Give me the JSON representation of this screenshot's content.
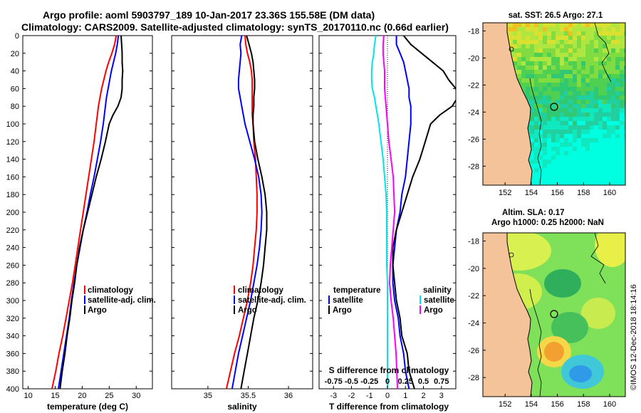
{
  "header": {
    "title_line1": "Argo profile: aoml 5903797_189 10-Jan-2017 23.36S 155.58E (DM data)",
    "title_line2": "Climatology: CARS2009. Satellite-adjusted climatology: synTS_20170110.nc (0.66d earlier)"
  },
  "colors": {
    "climatology": "#ff0000",
    "satellite": "#0000ff",
    "argo": "#000000",
    "salinity_satellite": "#00e5e5",
    "salinity_climatology": "#ff00ff",
    "land": "#f4c39a"
  },
  "depth_ticks": [
    "0",
    "20",
    "40",
    "60",
    "80",
    "100",
    "120",
    "140",
    "160",
    "180",
    "200",
    "220",
    "240",
    "260",
    "280",
    "300",
    "320",
    "340",
    "360",
    "380",
    "400"
  ],
  "chart_data": [
    {
      "type": "line",
      "name": "temperature-profile",
      "xlabel": "temperature (deg C)",
      "ylabel": "depth",
      "xlim": [
        9,
        33
      ],
      "ylim": [
        400,
        0
      ],
      "xticks": [
        "10",
        "15",
        "20",
        "25",
        "30"
      ],
      "depth": [
        0,
        10,
        20,
        30,
        40,
        50,
        60,
        70,
        80,
        90,
        100,
        120,
        140,
        160,
        180,
        200,
        220,
        240,
        260,
        280,
        300,
        320,
        340,
        360,
        380,
        400
      ],
      "series": [
        {
          "name": "climatology",
          "legend": "climatology",
          "color": "#ff0000",
          "values": [
            26.3,
            26.0,
            25.5,
            24.9,
            24.4,
            24.0,
            23.6,
            23.3,
            23.0,
            22.8,
            22.6,
            22.2,
            21.7,
            21.2,
            20.7,
            20.2,
            19.7,
            19.2,
            18.7,
            18.2,
            17.6,
            17.0,
            16.4,
            15.7,
            15.1,
            14.4
          ]
        },
        {
          "name": "satellite-adj. clim.",
          "legend": "satellite-adj. clim.",
          "color": "#0000ff",
          "values": [
            26.7,
            26.5,
            26.2,
            25.8,
            25.4,
            25.1,
            24.8,
            24.5,
            24.3,
            24.1,
            23.9,
            23.4,
            22.8,
            22.2,
            21.5,
            20.9,
            20.2,
            19.6,
            19.0,
            18.5,
            18.0,
            17.6,
            17.1,
            16.6,
            16.1,
            15.6
          ]
        },
        {
          "name": "Argo",
          "legend": "Argo",
          "color": "#000000",
          "values": [
            27.2,
            27.3,
            27.4,
            27.4,
            27.5,
            27.4,
            27.4,
            27.2,
            26.6,
            25.7,
            25.0,
            24.3,
            23.5,
            22.6,
            21.8,
            21.0,
            20.2,
            19.5,
            19.0,
            18.6,
            18.1,
            17.7,
            17.2,
            16.8,
            16.3,
            15.9
          ]
        }
      ],
      "legend": [
        "climatology",
        "satellite-adj. clim.",
        "Argo"
      ]
    },
    {
      "type": "line",
      "name": "salinity-profile",
      "xlabel": "salinity",
      "ylabel": "depth",
      "xlim": [
        34.55,
        36.3
      ],
      "ylim": [
        400,
        0
      ],
      "xticks": [
        "35",
        "35.5",
        "36"
      ],
      "depth": [
        0,
        10,
        20,
        30,
        40,
        50,
        60,
        70,
        80,
        90,
        100,
        120,
        140,
        160,
        180,
        200,
        220,
        240,
        260,
        280,
        300,
        320,
        340,
        360,
        380,
        400
      ],
      "series": [
        {
          "name": "climatology",
          "legend": "climatology",
          "color": "#ff0000",
          "values": [
            35.46,
            35.47,
            35.49,
            35.52,
            35.54,
            35.55,
            35.55,
            35.55,
            35.55,
            35.55,
            35.56,
            35.57,
            35.59,
            35.6,
            35.61,
            35.61,
            35.6,
            35.58,
            35.56,
            35.53,
            35.49,
            35.44,
            35.39,
            35.33,
            35.28,
            35.23
          ]
        },
        {
          "name": "satellite-adj. clim.",
          "legend": "satellite-adj. clim.",
          "color": "#0000ff",
          "values": [
            35.42,
            35.4,
            35.41,
            35.4,
            35.39,
            35.38,
            35.38,
            35.4,
            35.42,
            35.44,
            35.46,
            35.52,
            35.58,
            35.63,
            35.66,
            35.67,
            35.66,
            35.64,
            35.61,
            35.57,
            35.53,
            35.48,
            35.43,
            35.38,
            35.34,
            35.3
          ]
        },
        {
          "name": "Argo",
          "legend": "Argo",
          "color": "#000000",
          "values": [
            35.48,
            35.51,
            35.54,
            35.56,
            35.57,
            35.58,
            35.58,
            35.57,
            35.57,
            35.56,
            35.56,
            35.58,
            35.62,
            35.67,
            35.71,
            35.73,
            35.73,
            35.71,
            35.69,
            35.66,
            35.62,
            35.57,
            35.53,
            35.49,
            35.45,
            35.41
          ]
        }
      ],
      "legend": [
        "climatology",
        "satellite-adj. clim.",
        "Argo"
      ]
    },
    {
      "type": "line",
      "name": "difference-profile",
      "xlabel": "T difference from climatology",
      "xlabel_top": "S difference from climatology",
      "ylabel": "depth",
      "xlim": [
        -3.8,
        3.8
      ],
      "ylim": [
        400,
        0
      ],
      "xticks": [
        "-3",
        "-2",
        "-1",
        "0",
        "1",
        "2",
        "3"
      ],
      "xticks_top": [
        "-0.75",
        "-0.5",
        "-0.25",
        "0",
        "0.25",
        "0.5",
        "0.75"
      ],
      "depth": [
        0,
        10,
        20,
        30,
        40,
        50,
        60,
        70,
        80,
        90,
        100,
        120,
        140,
        160,
        180,
        200,
        220,
        240,
        260,
        280,
        300,
        320,
        340,
        360,
        380,
        400
      ],
      "series": [
        {
          "name": "temperature satellite",
          "group": "temperature",
          "legend": "satellite",
          "color": "#0000ff",
          "values": [
            0.5,
            0.5,
            0.7,
            0.9,
            1.0,
            1.1,
            1.2,
            1.2,
            1.3,
            1.3,
            1.3,
            1.2,
            1.1,
            1.0,
            0.8,
            0.7,
            0.5,
            0.4,
            0.3,
            0.3,
            0.4,
            0.6,
            0.7,
            0.9,
            1.0,
            1.2
          ]
        },
        {
          "name": "temperature Argo",
          "group": "temperature",
          "legend": "Argo",
          "color": "#000000",
          "values": [
            0.9,
            1.3,
            1.9,
            2.5,
            3.1,
            3.4,
            3.8,
            3.9,
            3.6,
            2.9,
            2.4,
            2.1,
            1.8,
            1.4,
            1.1,
            0.8,
            0.5,
            0.3,
            0.3,
            0.4,
            0.5,
            0.7,
            0.8,
            1.1,
            1.2,
            1.5
          ]
        },
        {
          "name": "salinity satellite",
          "group": "salinity",
          "legend": "satellite",
          "color": "#00e5e5",
          "values": [
            -0.16,
            -0.18,
            -0.19,
            -0.21,
            -0.22,
            -0.22,
            -0.21,
            -0.18,
            -0.16,
            -0.14,
            -0.12,
            -0.09,
            -0.06,
            -0.04,
            -0.02,
            -0.01,
            -0.01,
            -0.01,
            -0.01,
            0.0,
            0.0,
            0.0,
            0.0,
            0.0,
            0.0,
            0.0
          ]
        },
        {
          "name": "salinity Argo",
          "group": "salinity",
          "legend": "Argo",
          "color": "#ff00ff",
          "values": [
            -0.05,
            -0.06,
            -0.06,
            -0.05,
            -0.04,
            -0.04,
            -0.04,
            -0.03,
            -0.02,
            -0.01,
            0.0,
            0.02,
            0.05,
            0.08,
            0.09,
            0.1,
            0.08,
            0.06,
            0.04,
            0.03,
            0.05,
            0.08,
            0.1,
            0.12,
            0.13,
            0.14
          ]
        }
      ],
      "legend_temperature_title": "temperature",
      "legend_salinity_title": "salinity",
      "legend_temperature": [
        "satellite",
        "Argo"
      ],
      "legend_salinity": [
        "satellite",
        "Argo"
      ]
    },
    {
      "type": "heatmap",
      "name": "sst-map",
      "title": "sat. SST: 26.5 Argo: 27.1",
      "xlim": [
        150.3,
        161.2
      ],
      "ylim": [
        -29.4,
        -17.4
      ],
      "xticks": [
        "152",
        "154",
        "156",
        "158",
        "160"
      ],
      "yticks": [
        "-18",
        "-20",
        "-22",
        "-24",
        "-26",
        "-28"
      ],
      "profile_position": [
        155.58,
        -23.36
      ]
    },
    {
      "type": "heatmap",
      "name": "sla-map",
      "title_line1": "Altim. SLA: 0.17",
      "title_line2": "Argo h1000: 0.25 h2000: NaN",
      "xlim": [
        150.3,
        161.2
      ],
      "ylim": [
        -29.4,
        -17.4
      ],
      "xticks": [
        "152",
        "154",
        "156",
        "158",
        "160"
      ],
      "yticks": [
        "-18",
        "-20",
        "-22",
        "-24",
        "-26",
        "-28"
      ],
      "profile_position": [
        155.58,
        -23.36
      ]
    }
  ],
  "footer": {
    "credit": "©IMOS 12-Dec-2018 18:14:16"
  }
}
